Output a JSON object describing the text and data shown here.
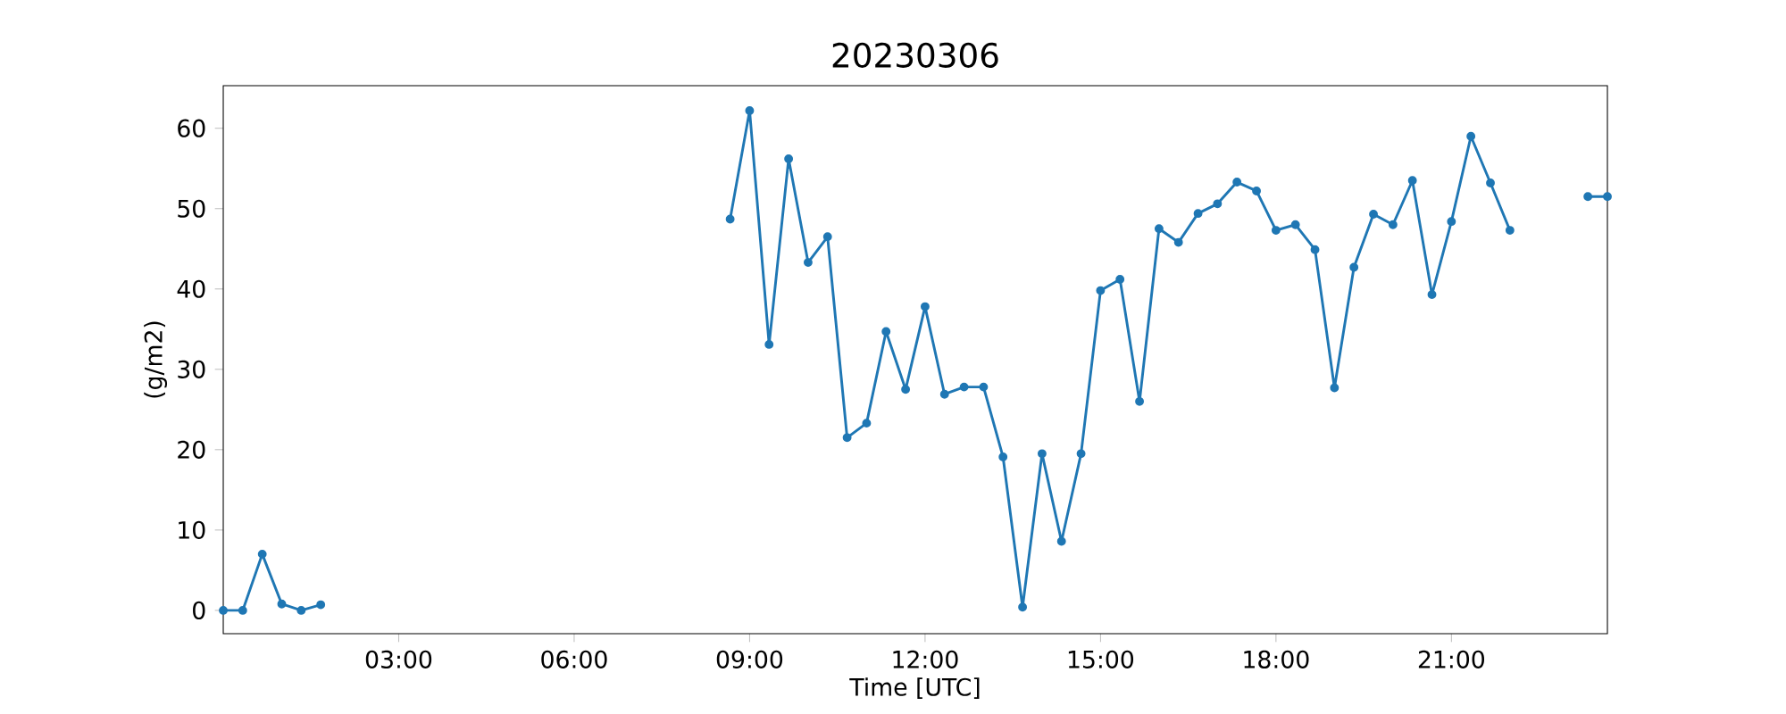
{
  "chart_data": {
    "type": "line",
    "title": "20230306",
    "xlabel": "Time [UTC]",
    "ylabel": "(g/m2)",
    "x": [
      0,
      0.333,
      0.667,
      1,
      1.333,
      1.667,
      2,
      8.667,
      9,
      9.333,
      9.667,
      10,
      10.333,
      10.667,
      11,
      11.333,
      11.667,
      12,
      12.333,
      12.667,
      13,
      13.333,
      13.667,
      14,
      14.333,
      14.667,
      15,
      15.333,
      15.667,
      16,
      16.333,
      16.667,
      17,
      17.333,
      17.667,
      18,
      18.333,
      18.667,
      19,
      19.333,
      19.667,
      20,
      20.333,
      20.667,
      21,
      21.333,
      21.667,
      22,
      22.333,
      23.333,
      23.667
    ],
    "series": [
      {
        "color": "#1f77b4",
        "values": [
          0,
          0,
          7.0,
          0.8,
          0,
          0.7,
          null,
          48.7,
          62.2,
          33.1,
          56.2,
          43.3,
          46.5,
          21.5,
          23.3,
          34.7,
          27.5,
          37.8,
          26.9,
          27.8,
          27.8,
          19.1,
          0.4,
          19.5,
          8.6,
          19.5,
          39.8,
          41.2,
          26.0,
          47.5,
          45.8,
          49.4,
          50.6,
          53.3,
          52.2,
          47.3,
          48.0,
          44.9,
          27.7,
          42.7,
          49.3,
          48.0,
          53.5,
          39.3,
          48.4,
          59.0,
          53.2,
          47.3,
          null,
          51.5,
          51.5
        ]
      }
    ],
    "xlim": [
      0,
      23.667
    ],
    "ylim": [
      -2.9,
      65.3
    ],
    "xticks": [
      {
        "value": 3,
        "label": "03:00"
      },
      {
        "value": 6,
        "label": "06:00"
      },
      {
        "value": 9,
        "label": "09:00"
      },
      {
        "value": 12,
        "label": "12:00"
      },
      {
        "value": 15,
        "label": "15:00"
      },
      {
        "value": 18,
        "label": "18:00"
      },
      {
        "value": 21,
        "label": "21:00"
      }
    ],
    "yticks": [
      0,
      10,
      20,
      30,
      40,
      50,
      60
    ],
    "marker": "circle",
    "line_style": "solid",
    "grid": false
  }
}
